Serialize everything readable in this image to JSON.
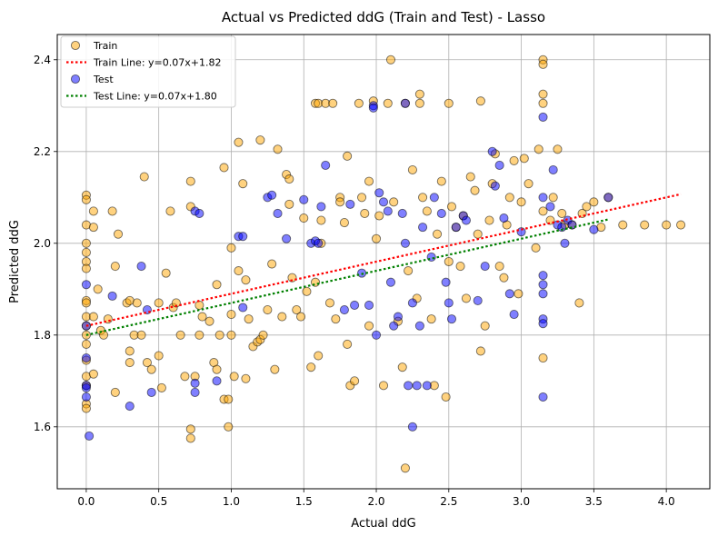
{
  "chart_data": {
    "type": "scatter",
    "title": "Actual vs Predicted ddG (Train and Test) - Lasso",
    "xlabel": "Actual ddG",
    "ylabel": "Predicted ddG",
    "xlim": [
      -0.2,
      4.3
    ],
    "ylim": [
      1.465,
      2.455
    ],
    "xticks": [
      0.0,
      0.5,
      1.0,
      1.5,
      2.0,
      2.5,
      3.0,
      3.5,
      4.0
    ],
    "xtick_labels": [
      "0.0",
      "0.5",
      "1.0",
      "1.5",
      "2.0",
      "2.5",
      "3.0",
      "3.5",
      "4.0"
    ],
    "yticks": [
      1.6,
      1.8,
      2.0,
      2.2,
      2.4
    ],
    "ytick_labels": [
      "1.6",
      "1.8",
      "2.0",
      "2.2",
      "2.4"
    ],
    "grid": true,
    "legend_position": "top-left",
    "series": [
      {
        "name": "Train",
        "kind": "scatter",
        "color": "#ffa500",
        "points": [
          [
            0.0,
            2.105
          ],
          [
            0.0,
            2.095
          ],
          [
            0.0,
            2.04
          ],
          [
            0.0,
            2.0
          ],
          [
            0.0,
            1.98
          ],
          [
            0.0,
            1.96
          ],
          [
            0.0,
            1.945
          ],
          [
            0.0,
            1.875
          ],
          [
            0.0,
            1.87
          ],
          [
            0.0,
            1.84
          ],
          [
            0.0,
            1.82
          ],
          [
            0.0,
            1.8
          ],
          [
            0.0,
            1.78
          ],
          [
            0.0,
            1.745
          ],
          [
            0.0,
            1.71
          ],
          [
            0.0,
            1.69
          ],
          [
            0.0,
            1.65
          ],
          [
            0.0,
            1.64
          ],
          [
            0.05,
            2.07
          ],
          [
            0.05,
            2.035
          ],
          [
            0.05,
            1.84
          ],
          [
            0.05,
            1.715
          ],
          [
            0.08,
            1.9
          ],
          [
            0.1,
            1.81
          ],
          [
            0.12,
            1.8
          ],
          [
            0.15,
            1.835
          ],
          [
            0.18,
            2.07
          ],
          [
            0.2,
            1.95
          ],
          [
            0.22,
            2.02
          ],
          [
            0.2,
            1.675
          ],
          [
            0.28,
            1.87
          ],
          [
            0.3,
            1.875
          ],
          [
            0.3,
            1.765
          ],
          [
            0.3,
            1.74
          ],
          [
            0.33,
            1.8
          ],
          [
            0.35,
            1.87
          ],
          [
            0.38,
            1.8
          ],
          [
            0.4,
            2.145
          ],
          [
            0.42,
            1.74
          ],
          [
            0.45,
            1.725
          ],
          [
            0.5,
            1.87
          ],
          [
            0.5,
            1.755
          ],
          [
            0.52,
            1.685
          ],
          [
            0.55,
            1.935
          ],
          [
            0.58,
            2.07
          ],
          [
            0.6,
            1.86
          ],
          [
            0.62,
            1.87
          ],
          [
            0.65,
            1.8
          ],
          [
            0.68,
            1.71
          ],
          [
            0.72,
            2.08
          ],
          [
            0.72,
            2.135
          ],
          [
            0.72,
            1.595
          ],
          [
            0.72,
            1.575
          ],
          [
            0.75,
            1.71
          ],
          [
            0.78,
            1.8
          ],
          [
            0.78,
            1.865
          ],
          [
            0.8,
            1.84
          ],
          [
            0.85,
            1.83
          ],
          [
            0.88,
            1.74
          ],
          [
            0.9,
            1.725
          ],
          [
            0.9,
            1.91
          ],
          [
            0.92,
            1.8
          ],
          [
            0.95,
            2.165
          ],
          [
            0.95,
            1.66
          ],
          [
            0.98,
            1.6
          ],
          [
            0.98,
            1.66
          ],
          [
            1.0,
            1.99
          ],
          [
            1.0,
            1.845
          ],
          [
            1.0,
            1.8
          ],
          [
            1.02,
            1.71
          ],
          [
            1.05,
            1.94
          ],
          [
            1.05,
            2.22
          ],
          [
            1.08,
            2.13
          ],
          [
            1.1,
            1.92
          ],
          [
            1.1,
            1.705
          ],
          [
            1.12,
            1.835
          ],
          [
            1.15,
            1.775
          ],
          [
            1.18,
            1.785
          ],
          [
            1.2,
            2.225
          ],
          [
            1.2,
            1.79
          ],
          [
            1.22,
            1.8
          ],
          [
            1.25,
            1.855
          ],
          [
            1.28,
            1.955
          ],
          [
            1.3,
            1.725
          ],
          [
            1.32,
            2.205
          ],
          [
            1.35,
            1.84
          ],
          [
            1.38,
            2.15
          ],
          [
            1.4,
            2.14
          ],
          [
            1.4,
            2.085
          ],
          [
            1.42,
            1.925
          ],
          [
            1.45,
            1.855
          ],
          [
            1.48,
            1.84
          ],
          [
            1.5,
            2.055
          ],
          [
            1.52,
            1.895
          ],
          [
            1.55,
            1.73
          ],
          [
            1.58,
            2.305
          ],
          [
            1.58,
            1.915
          ],
          [
            1.6,
            2.305
          ],
          [
            1.6,
            1.755
          ],
          [
            1.62,
            2.0
          ],
          [
            1.62,
            2.05
          ],
          [
            1.65,
            2.305
          ],
          [
            1.68,
            1.87
          ],
          [
            1.7,
            2.305
          ],
          [
            1.72,
            1.835
          ],
          [
            1.75,
            2.1
          ],
          [
            1.75,
            2.09
          ],
          [
            1.78,
            2.045
          ],
          [
            1.8,
            2.19
          ],
          [
            1.8,
            1.78
          ],
          [
            1.82,
            1.69
          ],
          [
            1.85,
            1.7
          ],
          [
            1.88,
            2.305
          ],
          [
            1.9,
            2.1
          ],
          [
            1.92,
            2.065
          ],
          [
            1.95,
            2.135
          ],
          [
            1.95,
            1.82
          ],
          [
            1.98,
            2.31
          ],
          [
            2.0,
            2.01
          ],
          [
            2.02,
            2.06
          ],
          [
            2.05,
            1.69
          ],
          [
            2.08,
            2.305
          ],
          [
            2.1,
            2.4
          ],
          [
            2.12,
            2.09
          ],
          [
            2.15,
            1.83
          ],
          [
            2.18,
            1.73
          ],
          [
            2.2,
            2.305
          ],
          [
            2.2,
            1.51
          ],
          [
            2.22,
            1.94
          ],
          [
            2.25,
            2.16
          ],
          [
            2.28,
            1.88
          ],
          [
            2.3,
            2.325
          ],
          [
            2.3,
            2.305
          ],
          [
            2.32,
            2.1
          ],
          [
            2.35,
            2.07
          ],
          [
            2.38,
            1.835
          ],
          [
            2.4,
            1.69
          ],
          [
            2.42,
            2.02
          ],
          [
            2.45,
            2.135
          ],
          [
            2.48,
            1.665
          ],
          [
            2.5,
            2.305
          ],
          [
            2.5,
            1.96
          ],
          [
            2.52,
            2.08
          ],
          [
            2.55,
            2.035
          ],
          [
            2.58,
            1.95
          ],
          [
            2.6,
            2.06
          ],
          [
            2.62,
            1.88
          ],
          [
            2.65,
            2.145
          ],
          [
            2.68,
            2.115
          ],
          [
            2.7,
            2.02
          ],
          [
            2.72,
            2.31
          ],
          [
            2.72,
            1.765
          ],
          [
            2.75,
            1.82
          ],
          [
            2.78,
            2.05
          ],
          [
            2.8,
            2.13
          ],
          [
            2.82,
            2.195
          ],
          [
            2.85,
            1.95
          ],
          [
            2.88,
            1.925
          ],
          [
            2.9,
            2.04
          ],
          [
            2.92,
            2.1
          ],
          [
            2.95,
            2.18
          ],
          [
            2.98,
            1.89
          ],
          [
            3.0,
            2.09
          ],
          [
            3.02,
            2.185
          ],
          [
            3.05,
            2.13
          ],
          [
            3.1,
            1.99
          ],
          [
            3.12,
            2.205
          ],
          [
            3.15,
            2.4
          ],
          [
            3.15,
            2.39
          ],
          [
            3.15,
            2.325
          ],
          [
            3.15,
            2.305
          ],
          [
            3.15,
            2.07
          ],
          [
            3.15,
            1.75
          ],
          [
            3.2,
            2.05
          ],
          [
            3.22,
            2.1
          ],
          [
            3.25,
            2.205
          ],
          [
            3.28,
            2.065
          ],
          [
            3.3,
            2.04
          ],
          [
            3.35,
            2.04
          ],
          [
            3.4,
            1.87
          ],
          [
            3.42,
            2.065
          ],
          [
            3.45,
            2.08
          ],
          [
            3.5,
            2.09
          ],
          [
            3.55,
            2.035
          ],
          [
            3.6,
            2.1
          ],
          [
            3.7,
            2.04
          ],
          [
            3.85,
            2.04
          ],
          [
            4.0,
            2.04
          ],
          [
            4.1,
            2.04
          ]
        ]
      },
      {
        "name": "Train Line: y=0.07x+1.82",
        "kind": "line",
        "color": "#ff0000",
        "style": "dotted",
        "x": [
          0.0,
          4.1
        ],
        "y": [
          1.82,
          2.107
        ]
      },
      {
        "name": "Test",
        "kind": "scatter",
        "color": "#0000ff",
        "points": [
          [
            0.0,
            1.91
          ],
          [
            0.0,
            1.82
          ],
          [
            0.0,
            1.75
          ],
          [
            0.0,
            1.69
          ],
          [
            0.0,
            1.685
          ],
          [
            0.0,
            1.665
          ],
          [
            0.02,
            1.58
          ],
          [
            0.18,
            1.885
          ],
          [
            0.3,
            1.645
          ],
          [
            0.38,
            1.95
          ],
          [
            0.42,
            1.855
          ],
          [
            0.45,
            1.675
          ],
          [
            0.75,
            2.07
          ],
          [
            0.78,
            2.065
          ],
          [
            0.75,
            1.695
          ],
          [
            0.75,
            1.675
          ],
          [
            0.9,
            1.7
          ],
          [
            1.05,
            2.015
          ],
          [
            1.08,
            2.015
          ],
          [
            1.08,
            1.86
          ],
          [
            1.25,
            2.1
          ],
          [
            1.28,
            2.105
          ],
          [
            1.32,
            2.065
          ],
          [
            1.38,
            2.01
          ],
          [
            1.5,
            2.095
          ],
          [
            1.55,
            2.0
          ],
          [
            1.58,
            2.005
          ],
          [
            1.6,
            2.0
          ],
          [
            1.62,
            2.08
          ],
          [
            1.65,
            2.17
          ],
          [
            1.78,
            1.855
          ],
          [
            1.82,
            2.085
          ],
          [
            1.85,
            1.865
          ],
          [
            1.9,
            1.935
          ],
          [
            1.95,
            1.865
          ],
          [
            1.98,
            2.3
          ],
          [
            1.98,
            2.295
          ],
          [
            2.0,
            1.8
          ],
          [
            2.02,
            2.11
          ],
          [
            2.05,
            2.09
          ],
          [
            2.08,
            2.07
          ],
          [
            2.1,
            1.915
          ],
          [
            2.12,
            1.82
          ],
          [
            2.15,
            1.84
          ],
          [
            2.18,
            2.065
          ],
          [
            2.2,
            2.305
          ],
          [
            2.2,
            2.0
          ],
          [
            2.22,
            1.69
          ],
          [
            2.25,
            1.87
          ],
          [
            2.25,
            1.6
          ],
          [
            2.28,
            1.69
          ],
          [
            2.3,
            1.82
          ],
          [
            2.32,
            2.035
          ],
          [
            2.35,
            1.69
          ],
          [
            2.38,
            1.97
          ],
          [
            2.4,
            2.1
          ],
          [
            2.45,
            2.065
          ],
          [
            2.48,
            1.915
          ],
          [
            2.5,
            1.87
          ],
          [
            2.52,
            1.835
          ],
          [
            2.55,
            2.035
          ],
          [
            2.6,
            2.06
          ],
          [
            2.62,
            2.05
          ],
          [
            2.7,
            1.875
          ],
          [
            2.75,
            1.95
          ],
          [
            2.8,
            2.2
          ],
          [
            2.82,
            2.125
          ],
          [
            2.85,
            2.17
          ],
          [
            2.88,
            2.055
          ],
          [
            2.92,
            1.89
          ],
          [
            2.95,
            1.845
          ],
          [
            3.0,
            2.025
          ],
          [
            3.15,
            2.275
          ],
          [
            3.15,
            2.1
          ],
          [
            3.15,
            1.93
          ],
          [
            3.15,
            1.91
          ],
          [
            3.15,
            1.89
          ],
          [
            3.15,
            1.835
          ],
          [
            3.15,
            1.825
          ],
          [
            3.15,
            1.665
          ],
          [
            3.2,
            2.08
          ],
          [
            3.22,
            2.16
          ],
          [
            3.25,
            2.04
          ],
          [
            3.28,
            2.035
          ],
          [
            3.3,
            2.0
          ],
          [
            3.32,
            2.05
          ],
          [
            3.35,
            2.04
          ],
          [
            3.5,
            2.03
          ],
          [
            3.6,
            2.1
          ]
        ]
      },
      {
        "name": "Test Line: y=0.07x+1.80",
        "kind": "line",
        "color": "#008000",
        "style": "dotted",
        "x": [
          0.0,
          3.6
        ],
        "y": [
          1.8,
          2.052
        ]
      }
    ]
  }
}
